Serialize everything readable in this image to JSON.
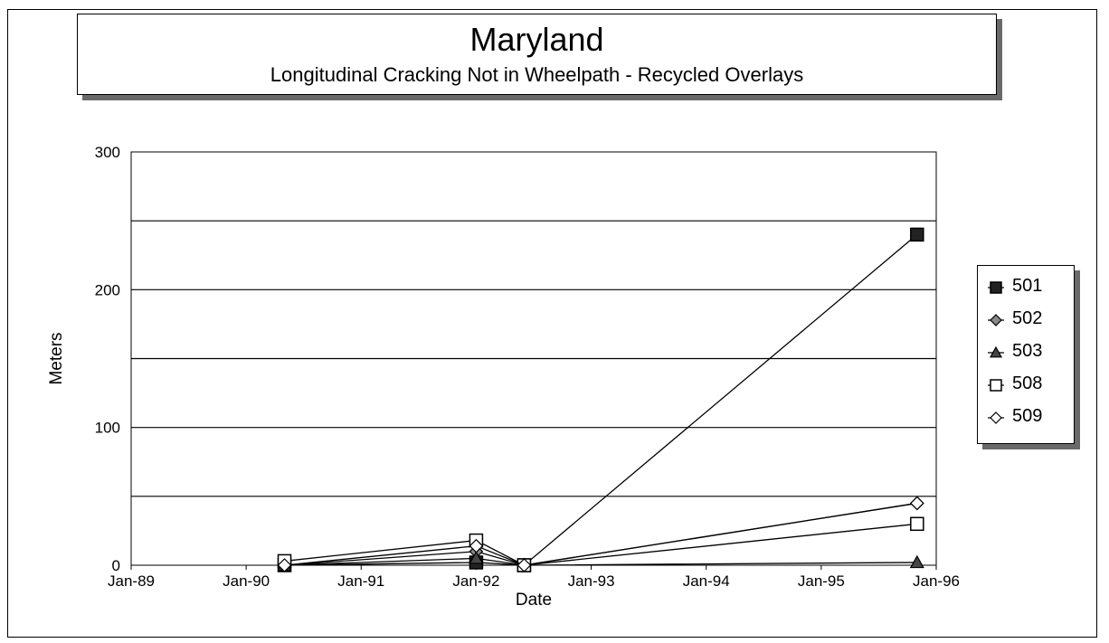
{
  "chart_data": {
    "type": "line",
    "title": "Maryland",
    "subtitle": "Longitudinal Cracking Not in Wheelpath - Recycled Overlays",
    "xlabel": "Date",
    "ylabel": "Meters",
    "x_ticks": [
      "Jan-89",
      "Jan-90",
      "Jan-91",
      "Jan-92",
      "Jan-93",
      "Jan-94",
      "Jan-95",
      "Jan-96"
    ],
    "y_ticks": [
      "0",
      "100",
      "200",
      "300"
    ],
    "ylim": [
      0,
      300
    ],
    "xlim": [
      "1989-01",
      "1996-01"
    ],
    "grid": "horizontal",
    "legend_position": "right",
    "series": [
      {
        "name": "501",
        "marker": "filled-square",
        "points": [
          {
            "x": "1990-05",
            "y": 0
          },
          {
            "x": "1992-01",
            "y": 2
          },
          {
            "x": "1992-06",
            "y": 0
          },
          {
            "x": "1995-11",
            "y": 240
          }
        ]
      },
      {
        "name": "502",
        "marker": "hatched-diamond",
        "points": [
          {
            "x": "1990-05",
            "y": 0
          },
          {
            "x": "1992-01",
            "y": 10
          },
          {
            "x": "1992-06",
            "y": 0
          },
          {
            "x": "1995-11",
            "y": 45
          }
        ]
      },
      {
        "name": "503",
        "marker": "filled-triangle",
        "points": [
          {
            "x": "1990-05",
            "y": 0
          },
          {
            "x": "1992-01",
            "y": 5
          },
          {
            "x": "1992-06",
            "y": 0
          },
          {
            "x": "1995-11",
            "y": 2
          }
        ]
      },
      {
        "name": "508",
        "marker": "open-square",
        "points": [
          {
            "x": "1990-05",
            "y": 3
          },
          {
            "x": "1992-01",
            "y": 18
          },
          {
            "x": "1992-06",
            "y": 0
          },
          {
            "x": "1995-11",
            "y": 30
          }
        ]
      },
      {
        "name": "509",
        "marker": "open-diamond",
        "points": [
          {
            "x": "1990-05",
            "y": 0
          },
          {
            "x": "1992-01",
            "y": 14
          },
          {
            "x": "1992-06",
            "y": 0
          },
          {
            "x": "1995-11",
            "y": 45
          }
        ]
      }
    ]
  }
}
